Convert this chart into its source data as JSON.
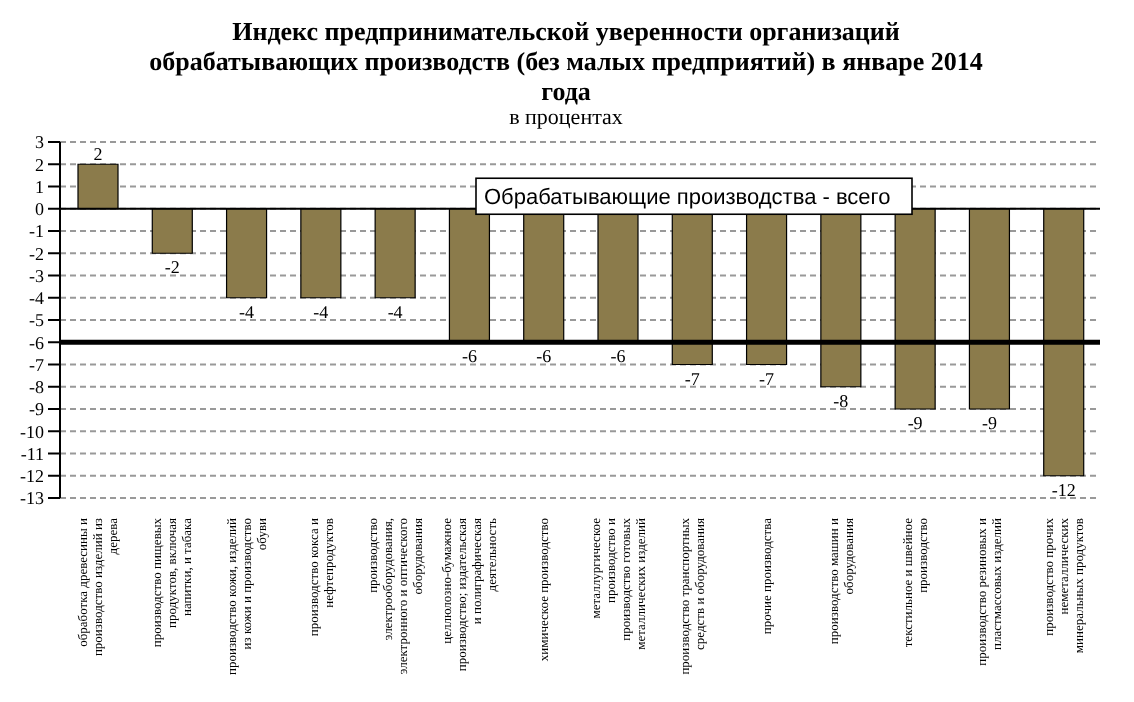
{
  "chart_data": {
    "type": "bar",
    "title": "Индекс предпринимательской уверенности организаций обрабатывающих производств (без малых предприятий) в январе 2014 года",
    "subtitle": "в процентах",
    "categories": [
      "обработка древесины и производство изделий из дерева",
      "производство пищевых продуктов, включая напитки, и табака",
      "производство кожи, изделий из кожи и производство обуви",
      "производство кокса и нефтепродуктов",
      "производство электрооборудования, электронного и оптического оборудования",
      "целлюлозно-бумажное производство; издательская и полиграфическая деятельность",
      "химическое производство",
      "металлургическое производство и производство готовых металлических изделий",
      "производство транспортных средств и оборудования",
      "прочие производства",
      "производство машин и оборудования",
      "текстильное и швейное производство",
      "производство резиновых и пластмассовых изделий",
      "производство прочих неметаллических минеральных продуктов"
    ],
    "values": [
      2,
      -2,
      -4,
      -4,
      -4,
      -6,
      -6,
      -6,
      -7,
      -7,
      -8,
      -9,
      -9,
      -12
    ],
    "color": "#8b7b4b",
    "ylim": [
      -13,
      3
    ],
    "yticks": [
      3,
      2,
      1,
      0,
      -1,
      -2,
      -3,
      -4,
      -5,
      -6,
      -7,
      -8,
      -9,
      -10,
      -11,
      -12,
      -13
    ],
    "grid": "y",
    "data_labels": true,
    "ref_lines": [
      {
        "axis": "y",
        "value": -6,
        "label": "Обрабатывающие производства - всего",
        "color": "#000000"
      }
    ]
  }
}
